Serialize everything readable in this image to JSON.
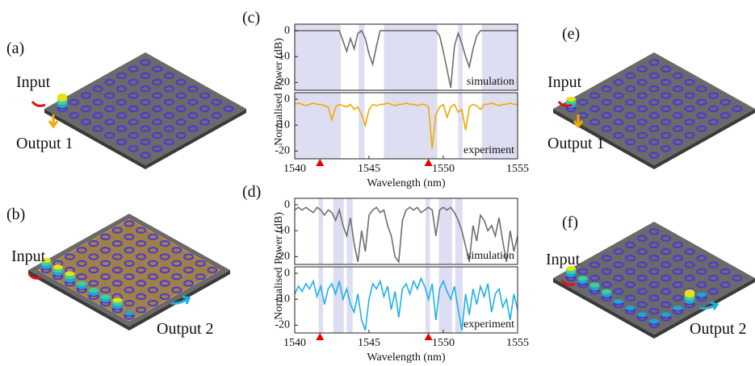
{
  "panels": {
    "a": {
      "label": "(a)",
      "input": "Input",
      "output": "Output 1"
    },
    "b": {
      "label": "(b)",
      "input": "Input",
      "output": "Output 2"
    },
    "c": {
      "label": "(c)"
    },
    "d": {
      "label": "(d)"
    },
    "e": {
      "label": "(e)",
      "input": "Input",
      "output": "Output 1"
    },
    "f": {
      "label": "(f)",
      "input": "Input",
      "output": "Output 2"
    }
  },
  "chart_data": [
    {
      "type": "line",
      "ylabel": "Normalised Power (dB)",
      "annotation": "simulation",
      "color": "#6e6e6e",
      "shade_color": "#dedef2",
      "xlim": [
        1540,
        1555
      ],
      "ylim": [
        -23,
        2.5
      ],
      "yticks": [
        0,
        -10,
        -20
      ],
      "shaded": [
        [
          1540,
          1543.1
        ],
        [
          1544.3,
          1544.7
        ],
        [
          1546,
          1549.6
        ],
        [
          1551,
          1551.3
        ],
        [
          1552.6,
          1555
        ]
      ],
      "x": [
        1540,
        1540.25,
        1540.5,
        1540.75,
        1541,
        1541.25,
        1541.5,
        1541.75,
        1542,
        1542.25,
        1542.5,
        1542.75,
        1543,
        1543.25,
        1543.5,
        1543.75,
        1544,
        1544.25,
        1544.5,
        1544.75,
        1545,
        1545.25,
        1545.5,
        1545.75,
        1546,
        1546.25,
        1546.5,
        1546.75,
        1547,
        1547.25,
        1547.5,
        1547.75,
        1548,
        1548.25,
        1548.5,
        1548.75,
        1549,
        1549.25,
        1549.5,
        1549.75,
        1550,
        1550.25,
        1550.5,
        1550.75,
        1551,
        1551.25,
        1551.5,
        1551.75,
        1552,
        1552.25,
        1552.5,
        1552.75,
        1553,
        1553.25,
        1553.5,
        1553.75,
        1554,
        1554.25,
        1554.5,
        1554.75,
        1555
      ],
      "values": [
        0,
        0,
        0,
        0,
        0,
        0,
        0,
        0,
        0,
        0,
        0,
        0,
        0,
        -4,
        -8,
        -3,
        -7,
        -1,
        0,
        -3,
        -9,
        -13,
        -6,
        0,
        0,
        0,
        0,
        0,
        0,
        0,
        0,
        0,
        0,
        0,
        0,
        0,
        0,
        0,
        0,
        -2,
        -8,
        -15,
        -22,
        -6,
        -1,
        -5,
        -10,
        -14,
        -7,
        -2,
        0,
        0,
        0,
        0,
        0,
        0,
        0,
        0,
        0,
        0,
        0
      ]
    },
    {
      "type": "line",
      "xlabel": "Wavelength (nm)",
      "annotation": "experiment",
      "color": "#f2a900",
      "shade_color": "#dedef2",
      "marker_color": "#e60000",
      "xlim": [
        1540,
        1555
      ],
      "ylim": [
        -23,
        2.5
      ],
      "yticks": [
        0,
        -10,
        -20
      ],
      "xticks": [
        1540,
        1545,
        1550,
        1555
      ],
      "markers": [
        1541.7,
        1549
      ],
      "shaded": [
        [
          1540,
          1543.1
        ],
        [
          1544.3,
          1544.7
        ],
        [
          1546,
          1549.6
        ],
        [
          1551,
          1551.3
        ],
        [
          1552.6,
          1555
        ]
      ],
      "x": [
        1540,
        1540.25,
        1540.5,
        1540.75,
        1541,
        1541.25,
        1541.5,
        1541.75,
        1542,
        1542.25,
        1542.5,
        1542.75,
        1543,
        1543.25,
        1543.5,
        1543.75,
        1544,
        1544.25,
        1544.5,
        1544.75,
        1545,
        1545.25,
        1545.5,
        1545.75,
        1546,
        1546.25,
        1546.5,
        1546.75,
        1547,
        1547.25,
        1547.5,
        1547.75,
        1548,
        1548.25,
        1548.5,
        1548.75,
        1549,
        1549.25,
        1549.5,
        1549.75,
        1550,
        1550.25,
        1550.5,
        1550.75,
        1551,
        1551.25,
        1551.5,
        1551.75,
        1552,
        1552.25,
        1552.5,
        1552.75,
        1553,
        1553.25,
        1553.5,
        1553.75,
        1554,
        1554.25,
        1554.5,
        1554.75,
        1555
      ],
      "values": [
        -2,
        -1.5,
        -2,
        -2.5,
        -2,
        -1.5,
        -2,
        -2,
        -2.5,
        -3,
        -8,
        -3,
        -2,
        -2.5,
        -3,
        -2,
        -4,
        -3,
        -6,
        -10,
        -4,
        -2,
        -2.5,
        -2,
        -2,
        -1.5,
        -2,
        -2.5,
        -2,
        -2,
        -1.5,
        -2,
        -2,
        -2.5,
        -2,
        -2,
        -3,
        -19,
        -6,
        -3,
        -2,
        -7,
        -3,
        -2,
        -5,
        -4,
        -12,
        -3,
        -2,
        -2.5,
        -4,
        -2,
        -2,
        -1.5,
        -2,
        -2.5,
        -2,
        -2,
        -1.5,
        -2,
        -2
      ]
    },
    {
      "type": "line",
      "ylabel": "Normalised Power (dB)",
      "annotation": "simulation",
      "color": "#6e6e6e",
      "shade_color": "#dedef2",
      "xlim": [
        1540,
        1555
      ],
      "ylim": [
        -23,
        2.5
      ],
      "yticks": [
        0,
        -10,
        -20
      ],
      "shaded": [
        [
          1541.6,
          1541.9
        ],
        [
          1542.6,
          1543.3
        ],
        [
          1543.5,
          1543.9
        ],
        [
          1548.8,
          1549.1
        ],
        [
          1549.7,
          1550.6
        ],
        [
          1550.8,
          1551.3
        ]
      ],
      "x": [
        1540,
        1540.25,
        1540.5,
        1540.75,
        1541,
        1541.25,
        1541.5,
        1541.75,
        1542,
        1542.25,
        1542.5,
        1542.75,
        1543,
        1543.25,
        1543.5,
        1543.75,
        1544,
        1544.25,
        1544.5,
        1544.75,
        1545,
        1545.25,
        1545.5,
        1545.75,
        1546,
        1546.25,
        1546.5,
        1546.75,
        1547,
        1547.25,
        1547.5,
        1547.75,
        1548,
        1548.25,
        1548.5,
        1548.75,
        1549,
        1549.25,
        1549.5,
        1549.75,
        1550,
        1550.25,
        1550.5,
        1550.75,
        1551,
        1551.25,
        1551.5,
        1551.75,
        1552,
        1552.25,
        1552.5,
        1552.75,
        1553,
        1553.25,
        1553.5,
        1553.75,
        1554,
        1554.25,
        1554.5,
        1554.75,
        1555
      ],
      "values": [
        -2,
        -1,
        -2,
        -1,
        -2,
        -3,
        -1,
        -2,
        -4,
        -2,
        -3,
        -6,
        -2,
        -8,
        -12,
        -5,
        -15,
        -22,
        -10,
        -18,
        -4,
        -2,
        -1,
        -3,
        -2,
        -8,
        -12,
        -20,
        -22,
        -6,
        -2,
        -1,
        -2,
        -1,
        -3,
        -2,
        -1,
        -2,
        -12,
        -2,
        -1,
        -2,
        -1,
        -3,
        -6,
        -10,
        -16,
        -22,
        -8,
        -14,
        -4,
        -6,
        -10,
        -8,
        -12,
        -5,
        -14,
        -22,
        -10,
        -18,
        -12
      ]
    },
    {
      "type": "line",
      "xlabel": "Wavelength (nm)",
      "annotation": "experiment",
      "color": "#1fb0e8",
      "shade_color": "#dedef2",
      "marker_color": "#e60000",
      "xlim": [
        1540,
        1555
      ],
      "ylim": [
        -23,
        2.5
      ],
      "yticks": [
        0,
        -10,
        -20
      ],
      "xticks": [
        1540,
        1545,
        1550,
        1555
      ],
      "markers": [
        1541.7,
        1549
      ],
      "shaded": [
        [
          1541.6,
          1541.9
        ],
        [
          1542.6,
          1543.3
        ],
        [
          1543.5,
          1543.9
        ],
        [
          1548.8,
          1549.1
        ],
        [
          1549.7,
          1550.6
        ],
        [
          1550.8,
          1551.3
        ]
      ],
      "x": [
        1540,
        1540.25,
        1540.5,
        1540.75,
        1541,
        1541.25,
        1541.5,
        1541.75,
        1542,
        1542.25,
        1542.5,
        1542.75,
        1543,
        1543.25,
        1543.5,
        1543.75,
        1544,
        1544.25,
        1544.5,
        1544.75,
        1545,
        1545.25,
        1545.5,
        1545.75,
        1546,
        1546.25,
        1546.5,
        1546.75,
        1547,
        1547.25,
        1547.5,
        1547.75,
        1548,
        1548.25,
        1548.5,
        1548.75,
        1549,
        1549.25,
        1549.5,
        1549.75,
        1550,
        1550.25,
        1550.5,
        1550.75,
        1551,
        1551.25,
        1551.5,
        1551.75,
        1552,
        1552.25,
        1552.5,
        1552.75,
        1553,
        1553.25,
        1553.5,
        1553.75,
        1554,
        1554.25,
        1554.5,
        1554.75,
        1555
      ],
      "values": [
        -8,
        -5,
        -7,
        -4,
        -6,
        -3,
        -9,
        -5,
        -12,
        -6,
        -4,
        -8,
        -3,
        -10,
        -6,
        -12,
        -15,
        -8,
        -18,
        -22,
        -10,
        -4,
        -6,
        -3,
        -9,
        -5,
        -14,
        -7,
        -17,
        -6,
        -4,
        -8,
        -3,
        -6,
        -2,
        -5,
        -10,
        -4,
        -18,
        -6,
        -3,
        -7,
        -10,
        -5,
        -14,
        -22,
        -8,
        -16,
        -6,
        -12,
        -5,
        -9,
        -4,
        -15,
        -8,
        -6,
        -13,
        -10,
        -18,
        -8,
        -14
      ]
    }
  ]
}
